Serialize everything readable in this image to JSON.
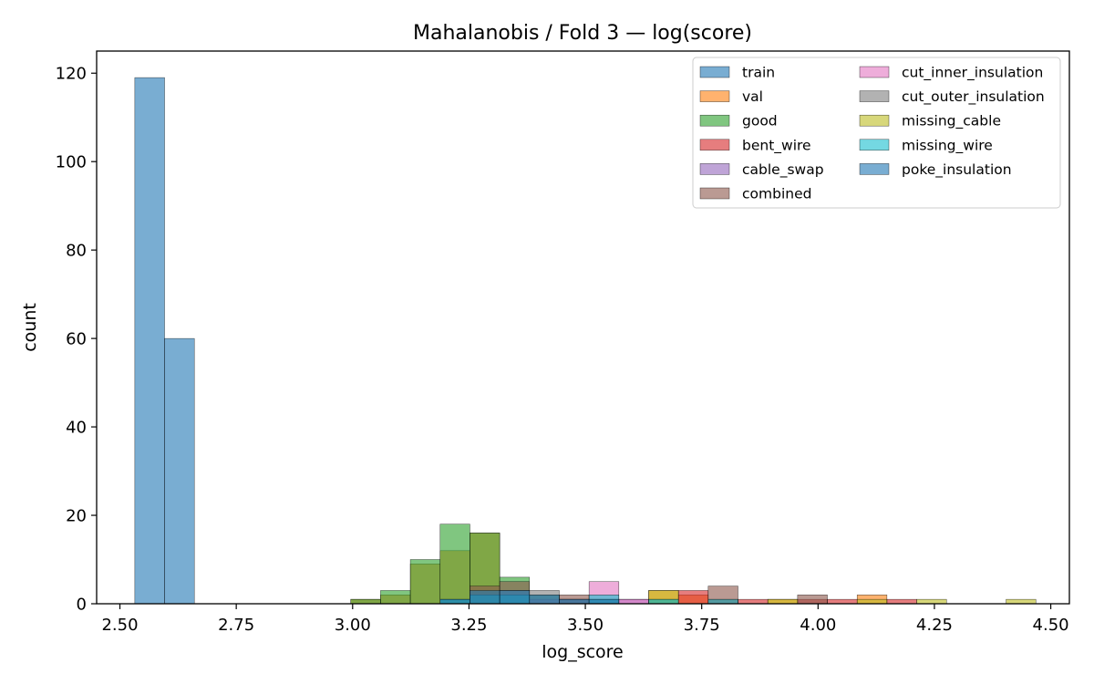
{
  "chart_data": {
    "type": "bar",
    "subtype": "histogram",
    "title": "Mahalanobis / Fold 3 — log(score)",
    "xlabel": "log_score",
    "ylabel": "count",
    "xlim": [
      2.45,
      4.54
    ],
    "ylim": [
      0,
      125
    ],
    "xticks": [
      2.5,
      2.75,
      3.0,
      3.25,
      3.5,
      3.75,
      4.0,
      4.25,
      4.5
    ],
    "xtick_labels": [
      "2.50",
      "2.75",
      "3.00",
      "3.25",
      "3.50",
      "3.75",
      "4.00",
      "4.25",
      "4.50"
    ],
    "yticks": [
      0,
      20,
      40,
      60,
      80,
      100,
      120
    ],
    "ytick_labels": [
      "0",
      "20",
      "40",
      "60",
      "80",
      "100",
      "120"
    ],
    "grid": false,
    "legend": {
      "placement": "top-right",
      "columns": 2
    },
    "bin_width": 0.064,
    "series": [
      {
        "name": "train",
        "color": "#1f77b4",
        "bins": [
          [
            2.532,
            119
          ],
          [
            2.596,
            60
          ]
        ]
      },
      {
        "name": "val",
        "color": "#ff7f0e",
        "bins": [
          [
            2.996,
            1
          ],
          [
            3.06,
            2
          ],
          [
            3.124,
            9
          ],
          [
            3.188,
            12
          ],
          [
            3.252,
            16
          ],
          [
            3.636,
            3
          ],
          [
            3.7,
            2
          ],
          [
            3.892,
            1
          ],
          [
            4.084,
            2
          ]
        ]
      },
      {
        "name": "good",
        "color": "#2ca02c",
        "bins": [
          [
            2.996,
            1
          ],
          [
            3.06,
            3
          ],
          [
            3.124,
            10
          ],
          [
            3.188,
            18
          ],
          [
            3.252,
            16
          ],
          [
            3.316,
            6
          ],
          [
            3.38,
            2
          ],
          [
            3.444,
            1
          ],
          [
            3.508,
            1
          ],
          [
            3.636,
            1
          ]
        ]
      },
      {
        "name": "bent_wire",
        "color": "#d62728",
        "bins": [
          [
            3.7,
            3
          ],
          [
            3.764,
            1
          ],
          [
            3.828,
            1
          ],
          [
            3.956,
            1
          ],
          [
            4.02,
            1
          ],
          [
            4.148,
            1
          ]
        ]
      },
      {
        "name": "cable_swap",
        "color": "#9467bd",
        "bins": [
          [
            3.38,
            1
          ],
          [
            3.444,
            1
          ],
          [
            3.572,
            1
          ]
        ]
      },
      {
        "name": "combined",
        "color": "#8c564b",
        "bins": [
          [
            3.252,
            4
          ],
          [
            3.316,
            5
          ],
          [
            3.444,
            2
          ],
          [
            3.764,
            4
          ],
          [
            3.956,
            2
          ]
        ]
      },
      {
        "name": "cut_inner_insulation",
        "color": "#e377c2",
        "bins": [
          [
            3.508,
            5
          ],
          [
            3.572,
            1
          ]
        ]
      },
      {
        "name": "cut_outer_insulation",
        "color": "#7f7f7f",
        "bins": [
          [
            3.316,
            3
          ],
          [
            3.38,
            3
          ],
          [
            3.444,
            1
          ],
          [
            3.508,
            1
          ],
          [
            3.636,
            1
          ]
        ]
      },
      {
        "name": "missing_cable",
        "color": "#bcbd22",
        "bins": [
          [
            3.636,
            3
          ],
          [
            3.892,
            1
          ],
          [
            4.084,
            1
          ],
          [
            4.212,
            1
          ],
          [
            4.404,
            1
          ]
        ]
      },
      {
        "name": "missing_wire",
        "color": "#17becf",
        "bins": [
          [
            3.188,
            1
          ],
          [
            3.252,
            2
          ],
          [
            3.316,
            2
          ],
          [
            3.508,
            2
          ],
          [
            3.636,
            1
          ],
          [
            3.764,
            1
          ]
        ]
      },
      {
        "name": "poke_insulation",
        "color": "#1f77b4",
        "bins": [
          [
            3.188,
            1
          ],
          [
            3.252,
            3
          ],
          [
            3.316,
            3
          ],
          [
            3.38,
            2
          ],
          [
            3.444,
            1
          ],
          [
            3.508,
            1
          ]
        ]
      }
    ]
  }
}
